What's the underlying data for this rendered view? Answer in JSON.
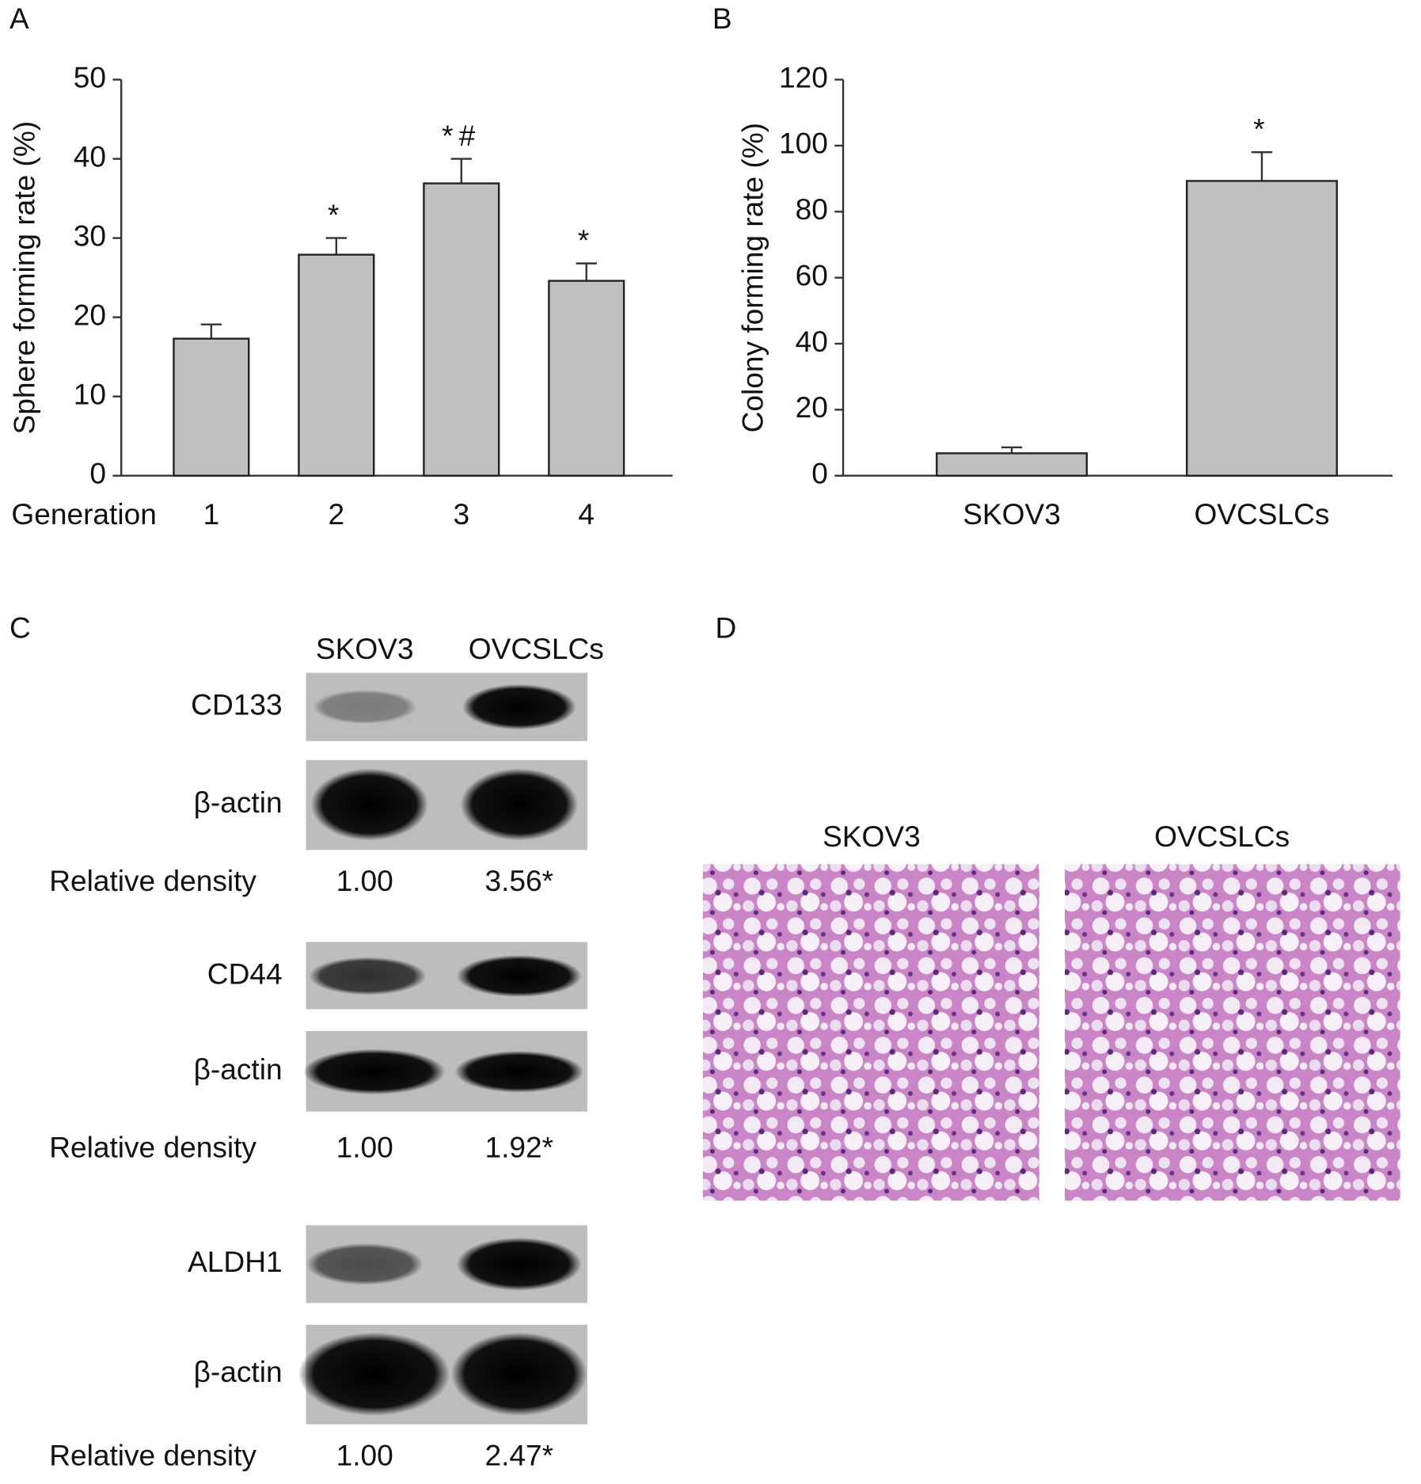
{
  "chart_data": [
    {
      "type": "bar",
      "panel": "A",
      "ylabel": "Sphere forming rate (%)",
      "xlabel": "Generation",
      "categories": [
        "1",
        "2",
        "3",
        "4"
      ],
      "values": [
        17.3,
        27.9,
        36.9,
        24.6
      ],
      "errors": [
        1.8,
        2.1,
        3.1,
        2.2
      ],
      "annotations": [
        {
          "index": 1,
          "text": "*"
        },
        {
          "index": 2,
          "text": "*#"
        },
        {
          "index": 3,
          "text": "*"
        }
      ],
      "color": "#c0c0c0",
      "ylim": [
        0,
        50
      ],
      "yticks": [
        0,
        10,
        20,
        30,
        40,
        50
      ]
    },
    {
      "type": "bar",
      "panel": "B",
      "ylabel": "Colony forming rate (%)",
      "categories": [
        "SKOV3",
        "OVCSLCs"
      ],
      "values": [
        6.8,
        89.3
      ],
      "errors": [
        1.8,
        8.7
      ],
      "annotations": [
        {
          "index": 1,
          "text": "*"
        }
      ],
      "color": "#c0c0c0",
      "ylim": [
        0,
        120
      ],
      "yticks": [
        0,
        20,
        40,
        60,
        80,
        100,
        120
      ]
    }
  ],
  "blots": {
    "panel": "C",
    "columns": [
      "SKOV3",
      "OVCSLCs"
    ],
    "groups": [
      {
        "marker": "CD133",
        "control": "β-actin",
        "density_label": "Relative density",
        "densities": [
          "1.00",
          "3.56*"
        ]
      },
      {
        "marker": "CD44",
        "control": "β-actin",
        "density_label": "Relative density",
        "densities": [
          "1.00",
          "1.92*"
        ]
      },
      {
        "marker": "ALDH1",
        "control": "β-actin",
        "density_label": "Relative density",
        "densities": [
          "1.00",
          "2.47*"
        ]
      }
    ]
  },
  "histology": {
    "panel": "D",
    "columns": [
      "SKOV3",
      "OVCSLCs"
    ]
  }
}
